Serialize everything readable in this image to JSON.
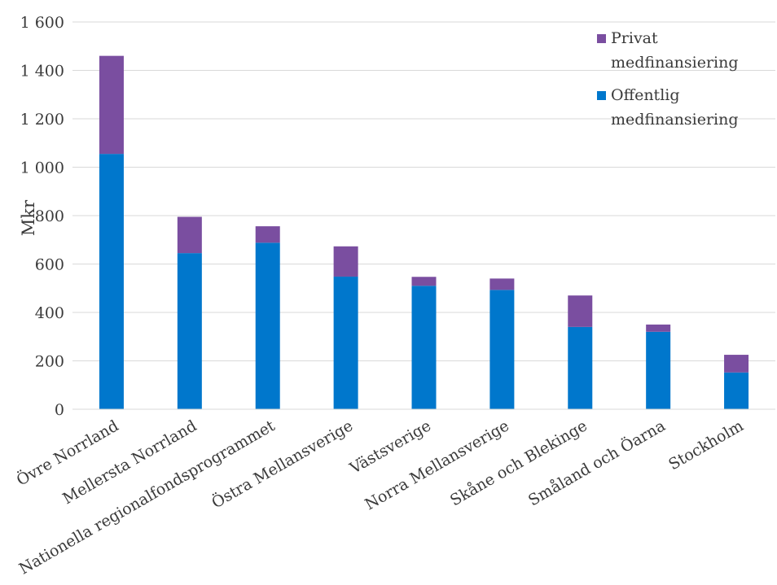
{
  "chart_data": {
    "type": "bar",
    "stacked": true,
    "ylabel": "Mkr",
    "ylim": [
      0,
      1600
    ],
    "yticks": [
      0,
      200,
      400,
      600,
      800,
      1000,
      1200,
      1400,
      1600
    ],
    "ytick_labels": [
      "0",
      "200",
      "400",
      "600",
      "800",
      "1 000",
      "1 200",
      "1 400",
      "1 600"
    ],
    "grid": true,
    "legend_position": "top-right",
    "categories": [
      "Övre Norrland",
      "Mellersta Norrland",
      "Nationella regionalfondsprogrammet",
      "Östra Mellansverige",
      "Västsverige",
      "Norra Mellansverige",
      "Skåne och Blekinge",
      "Småland och Öarna",
      "Stockholm"
    ],
    "series": [
      {
        "name": "Offentlig medfinansiering",
        "color": "#0077cc",
        "values": [
          1055,
          645,
          688,
          548,
          510,
          493,
          340,
          320,
          152
        ]
      },
      {
        "name": "Privat medfinansiering",
        "color": "#7a4ea0",
        "values": [
          405,
          150,
          68,
          125,
          37,
          47,
          130,
          30,
          73
        ]
      }
    ],
    "legend": [
      {
        "label_lines": [
          "Privat",
          "medfinansiering"
        ],
        "color": "#7a4ea0"
      },
      {
        "label_lines": [
          "Offentlig",
          "medfinansiering"
        ],
        "color": "#0077cc"
      }
    ]
  }
}
